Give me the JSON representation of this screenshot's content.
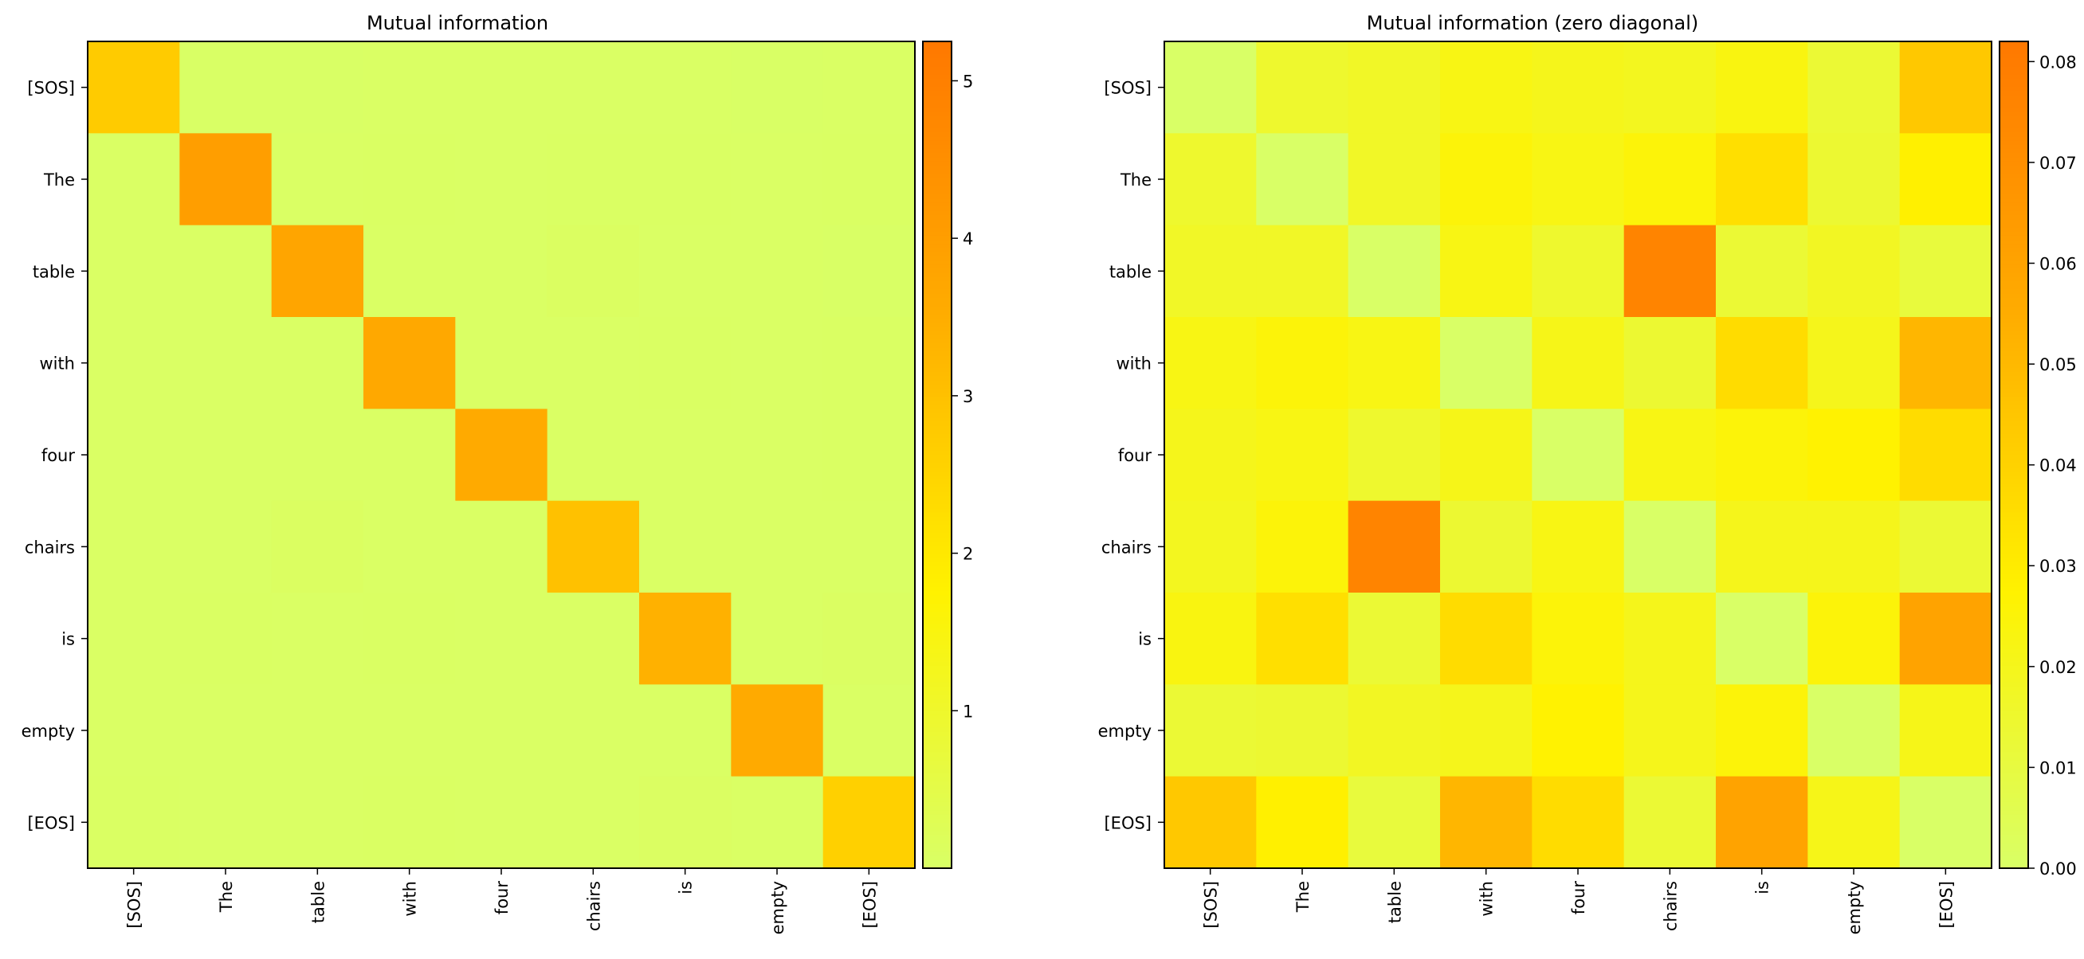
{
  "chart_data": [
    {
      "type": "heatmap",
      "title": "Mutual information",
      "row_labels": [
        "[SOS]",
        "The",
        "table",
        "with",
        "four",
        "chairs",
        "is",
        "empty",
        "[EOS]"
      ],
      "col_labels": [
        "[SOS]",
        "The",
        "table",
        "with",
        "four",
        "chairs",
        "is",
        "empty",
        "[EOS]"
      ],
      "values": [
        [
          2.75,
          0.02,
          0.02,
          0.03,
          0.03,
          0.03,
          0.03,
          0.02,
          0.04
        ],
        [
          0.03,
          4.0,
          0.03,
          0.05,
          0.04,
          0.05,
          0.06,
          0.03,
          0.05
        ],
        [
          0.03,
          0.03,
          3.75,
          0.04,
          0.03,
          0.08,
          0.03,
          0.04,
          0.02
        ],
        [
          0.04,
          0.04,
          0.04,
          3.65,
          0.04,
          0.03,
          0.05,
          0.04,
          0.06
        ],
        [
          0.04,
          0.04,
          0.03,
          0.04,
          3.6,
          0.04,
          0.04,
          0.04,
          0.05
        ],
        [
          0.03,
          0.04,
          0.08,
          0.03,
          0.04,
          3.0,
          0.04,
          0.04,
          0.03
        ],
        [
          0.04,
          0.05,
          0.03,
          0.05,
          0.04,
          0.04,
          3.4,
          0.04,
          0.07
        ],
        [
          0.03,
          0.03,
          0.04,
          0.04,
          0.04,
          0.04,
          0.04,
          3.6,
          0.04
        ],
        [
          0.06,
          0.04,
          0.03,
          0.05,
          0.04,
          0.04,
          0.07,
          0.04,
          2.6
        ]
      ],
      "vmin": 0.0,
      "vmax": 5.25,
      "colormap": [
        "#d9ff66",
        "#fff200",
        "#ffad00",
        "#ff7800"
      ],
      "colorbar_ticks": [
        1,
        2,
        3,
        4,
        5
      ],
      "colorbar_tick_labels": [
        "1",
        "2",
        "3",
        "4",
        "5"
      ]
    },
    {
      "type": "heatmap",
      "title": "Mutual information (zero diagonal)",
      "row_labels": [
        "[SOS]",
        "The",
        "table",
        "with",
        "four",
        "chairs",
        "is",
        "empty",
        "[EOS]"
      ],
      "col_labels": [
        "[SOS]",
        "The",
        "table",
        "with",
        "four",
        "chairs",
        "is",
        "empty",
        "[EOS]"
      ],
      "values": [
        [
          0.0,
          0.015,
          0.017,
          0.022,
          0.02,
          0.019,
          0.023,
          0.013,
          0.044
        ],
        [
          0.015,
          0.0,
          0.017,
          0.025,
          0.022,
          0.025,
          0.035,
          0.014,
          0.028
        ],
        [
          0.017,
          0.017,
          0.0,
          0.022,
          0.015,
          0.076,
          0.013,
          0.018,
          0.011
        ],
        [
          0.022,
          0.025,
          0.022,
          0.0,
          0.021,
          0.014,
          0.036,
          0.02,
          0.051
        ],
        [
          0.02,
          0.022,
          0.015,
          0.021,
          0.0,
          0.022,
          0.025,
          0.027,
          0.036
        ],
        [
          0.019,
          0.025,
          0.076,
          0.014,
          0.022,
          0.0,
          0.02,
          0.02,
          0.013
        ],
        [
          0.023,
          0.035,
          0.013,
          0.036,
          0.025,
          0.02,
          0.0,
          0.025,
          0.06
        ],
        [
          0.013,
          0.014,
          0.018,
          0.02,
          0.027,
          0.02,
          0.025,
          0.0,
          0.021
        ],
        [
          0.044,
          0.028,
          0.011,
          0.051,
          0.036,
          0.013,
          0.06,
          0.021,
          0.0
        ]
      ],
      "vmin": 0.0,
      "vmax": 0.082,
      "colormap": [
        "#d9ff66",
        "#fff200",
        "#ffad00",
        "#ff7800"
      ],
      "colorbar_ticks": [
        0.0,
        0.01,
        0.02,
        0.03,
        0.04,
        0.05,
        0.06,
        0.07,
        0.08
      ],
      "colorbar_tick_labels": [
        "0.00",
        "0.01",
        "0.02",
        "0.03",
        "0.04",
        "0.05",
        "0.06",
        "0.07",
        "0.08"
      ]
    }
  ]
}
